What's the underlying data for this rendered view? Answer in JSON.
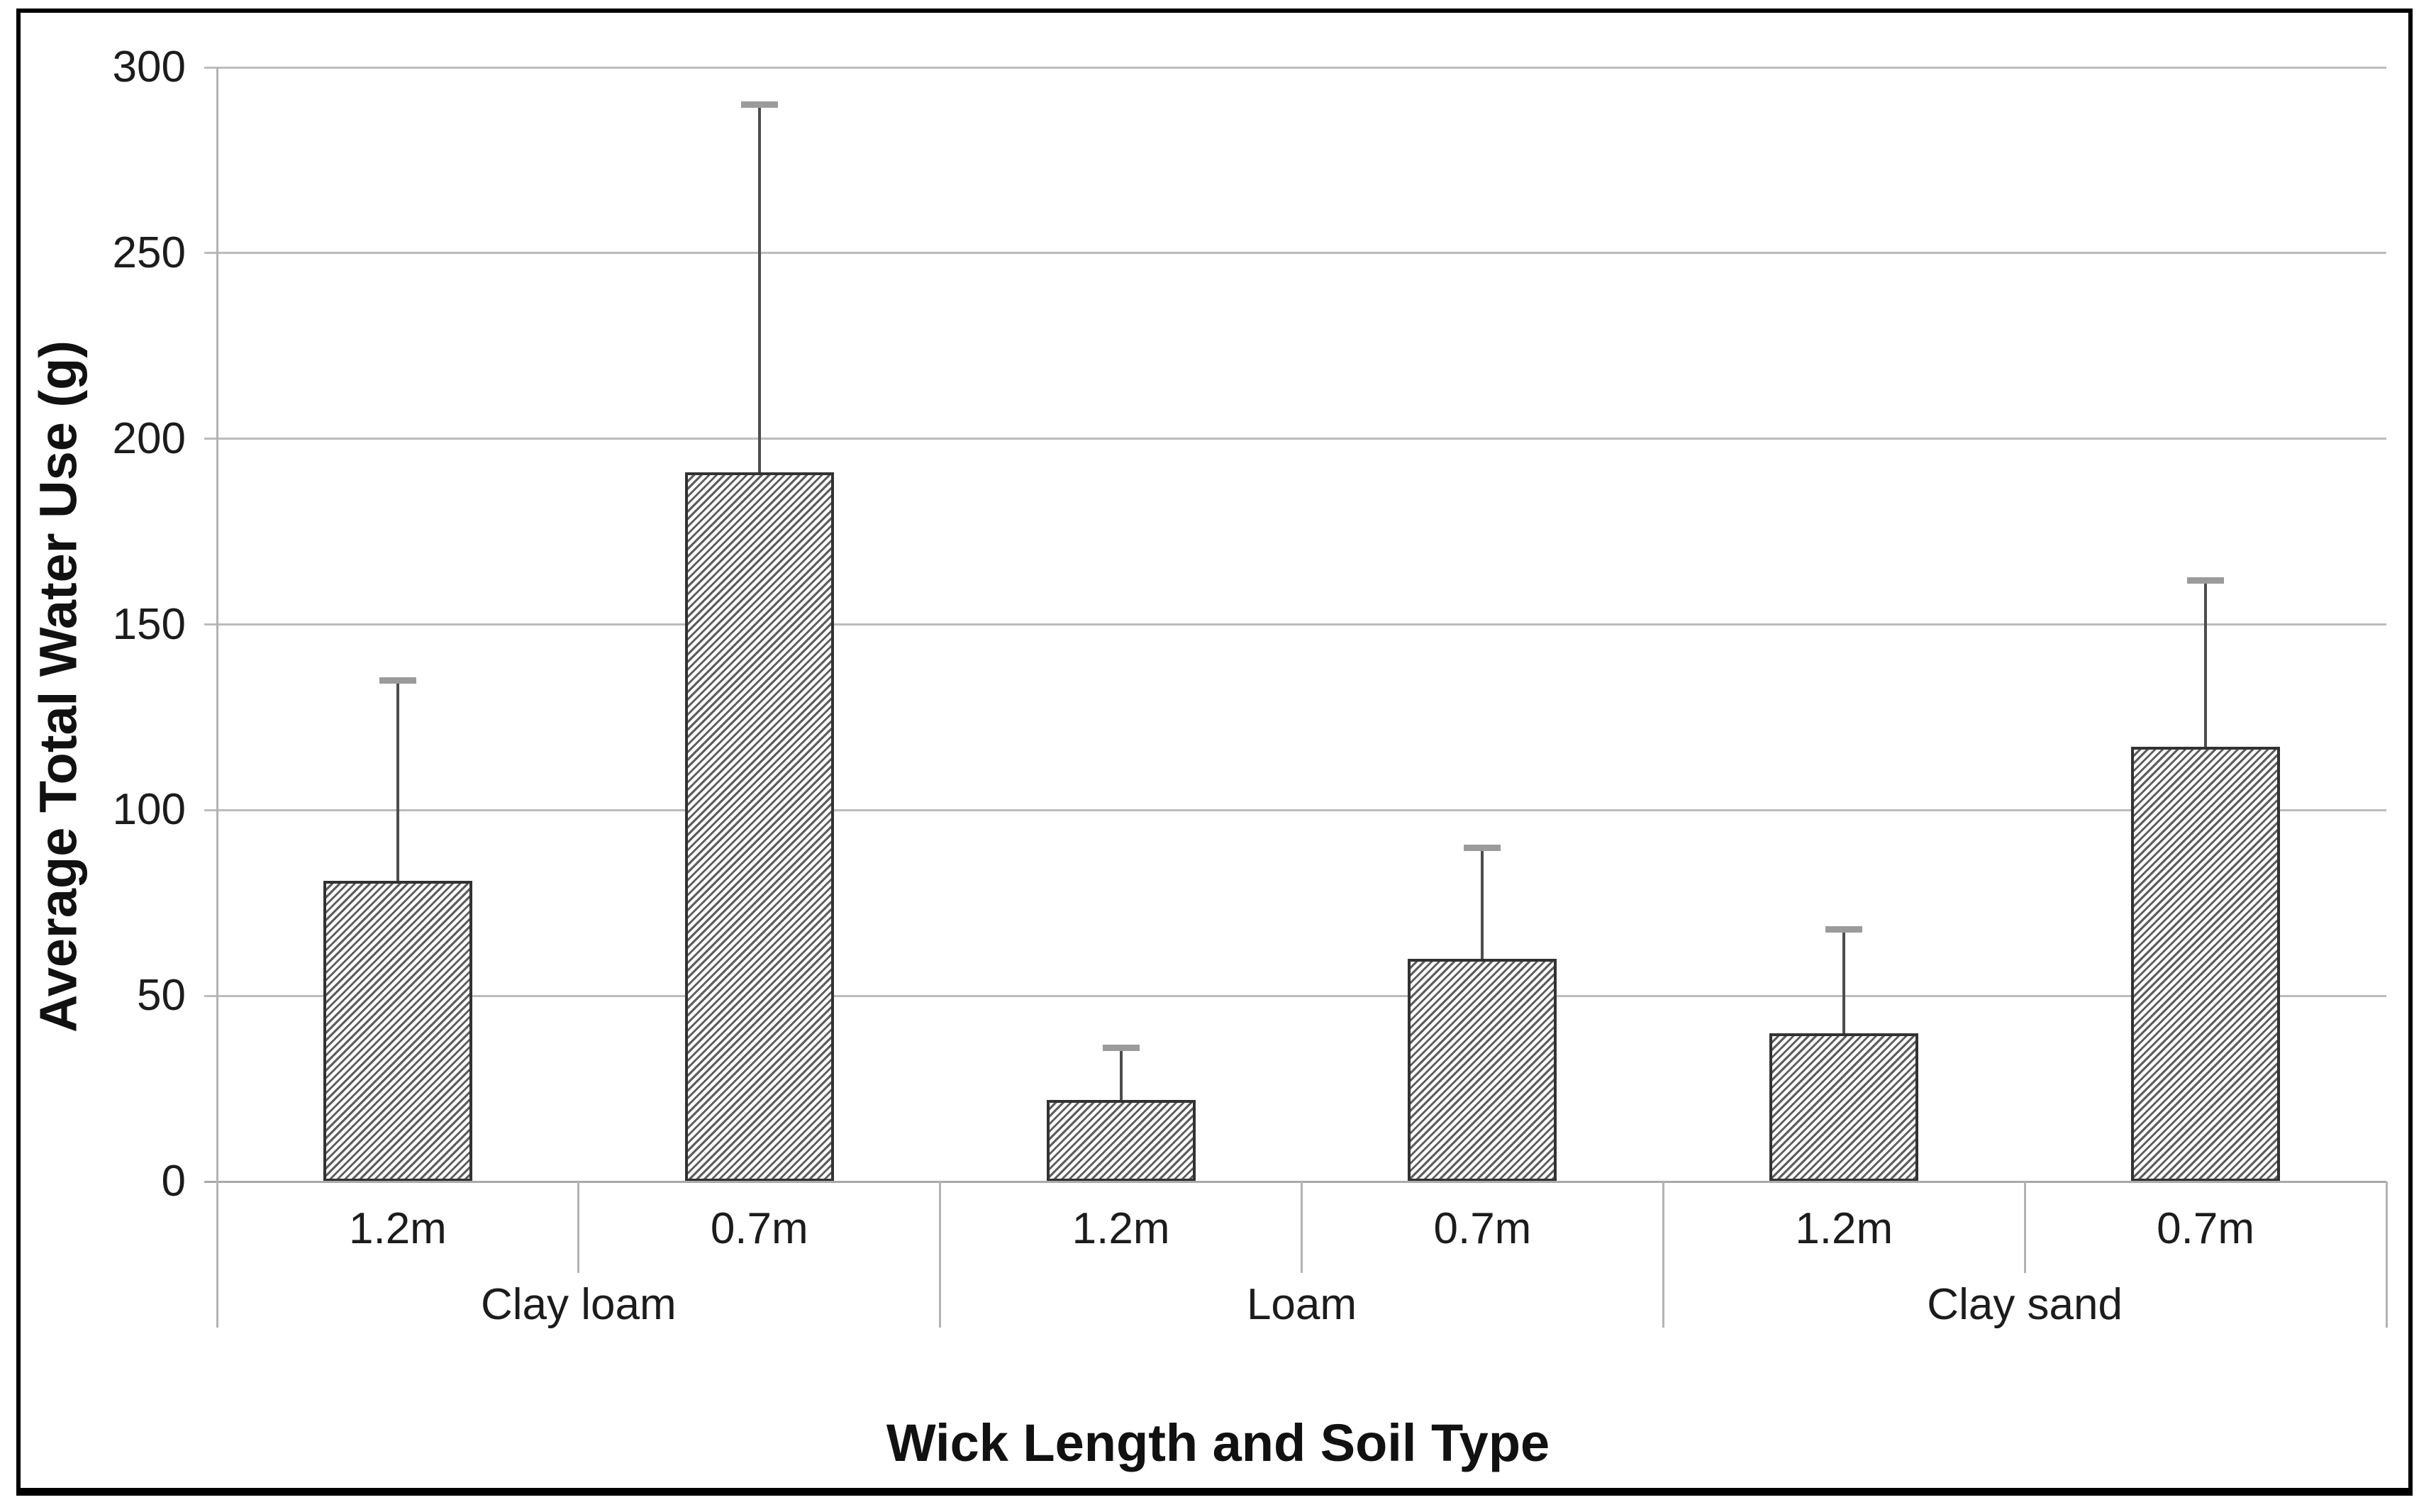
{
  "chart_data": {
    "type": "bar",
    "title": "",
    "xlabel": "Wick Length and Soil Type",
    "ylabel": "Average Total Water Use (g)",
    "ylim": [
      0,
      300
    ],
    "yticks": [
      0,
      50,
      100,
      150,
      200,
      250,
      300
    ],
    "grid": true,
    "legend": false,
    "bar_style": {
      "fill": "diagonal-hatch",
      "hatch_color": "#5d5d5d",
      "border_color": "#323232",
      "error_bars": "upper-only"
    },
    "groups": [
      {
        "label": "Clay loam",
        "bars": [
          {
            "category": "1.2m",
            "value": 81,
            "error_top": 135
          },
          {
            "category": "0.7m",
            "value": 191,
            "error_top": 290
          }
        ]
      },
      {
        "label": "Loam",
        "bars": [
          {
            "category": "1.2m",
            "value": 22,
            "error_top": 36
          },
          {
            "category": "0.7m",
            "value": 60,
            "error_top": 90
          }
        ]
      },
      {
        "label": "Clay sand",
        "bars": [
          {
            "category": "1.2m",
            "value": 40,
            "error_top": 68
          },
          {
            "category": "0.7m",
            "value": 117,
            "error_top": 162
          }
        ]
      }
    ]
  }
}
